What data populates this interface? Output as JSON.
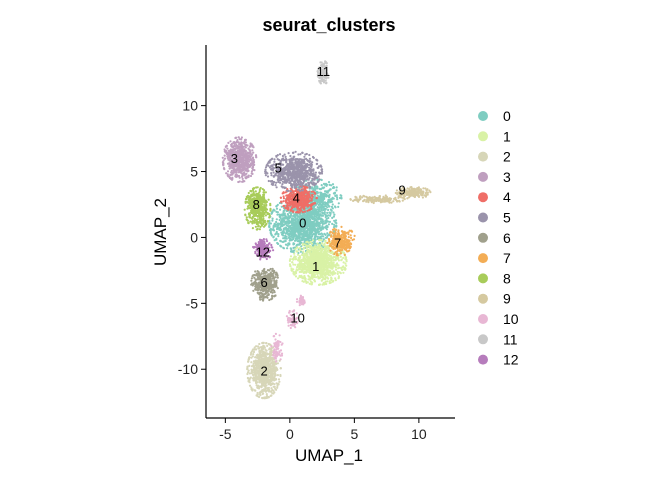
{
  "chart_data": {
    "type": "scatter",
    "title": "seurat_clusters",
    "xlabel": "UMAP_1",
    "ylabel": "UMAP_2",
    "xlim": [
      -6.5,
      12.8
    ],
    "ylim": [
      -13.7,
      14.6
    ],
    "x_ticks": [
      -5,
      0,
      5,
      10
    ],
    "y_ticks": [
      -10,
      -5,
      0,
      5,
      10
    ],
    "grid": false,
    "legend_position": "right",
    "series": [
      {
        "name": "0",
        "color": "#7fcdc1",
        "label_pos": [
          1.0,
          1.0
        ],
        "blobs": [
          [
            1.0,
            1.0,
            2.6,
            2.2,
            1300
          ],
          [
            2.0,
            3.0,
            2.0,
            1.4,
            400
          ]
        ]
      },
      {
        "name": "1",
        "color": "#d9f2a6",
        "label_pos": [
          2.0,
          -2.3
        ],
        "blobs": [
          [
            2.2,
            -1.9,
            2.2,
            1.7,
            1100
          ]
        ]
      },
      {
        "name": "2",
        "color": "#d7d6b8",
        "label_pos": [
          -2.0,
          -10.2
        ],
        "blobs": [
          [
            -2.0,
            -10.1,
            1.3,
            2.1,
            800
          ]
        ]
      },
      {
        "name": "3",
        "color": "#bf9fbf",
        "label_pos": [
          -4.3,
          5.9
        ],
        "blobs": [
          [
            -3.9,
            5.9,
            1.3,
            1.7,
            650
          ]
        ]
      },
      {
        "name": "4",
        "color": "#ef6e67",
        "label_pos": [
          0.5,
          2.9
        ],
        "blobs": [
          [
            0.7,
            2.9,
            1.4,
            1.0,
            450
          ]
        ]
      },
      {
        "name": "5",
        "color": "#9a93ab",
        "label_pos": [
          -0.9,
          5.2
        ],
        "blobs": [
          [
            0.3,
            5.0,
            2.2,
            1.5,
            750
          ]
        ]
      },
      {
        "name": "6",
        "color": "#a0a08c",
        "label_pos": [
          -2.0,
          -3.5
        ],
        "blobs": [
          [
            -1.9,
            -3.5,
            1.1,
            1.3,
            420
          ]
        ]
      },
      {
        "name": "7",
        "color": "#f3ad55",
        "label_pos": [
          3.7,
          -0.5
        ],
        "blobs": [
          [
            4.0,
            -0.3,
            1.1,
            1.1,
            280
          ]
        ]
      },
      {
        "name": "8",
        "color": "#a8cc5a",
        "label_pos": [
          -2.6,
          2.4
        ],
        "blobs": [
          [
            -2.5,
            2.2,
            1.0,
            1.6,
            480
          ]
        ]
      },
      {
        "name": "9",
        "color": "#d5c9a0",
        "label_pos": [
          8.7,
          3.5
        ],
        "blobs": [
          [
            9.5,
            3.4,
            1.4,
            0.45,
            220
          ],
          [
            6.8,
            2.9,
            2.1,
            0.3,
            160
          ]
        ]
      },
      {
        "name": "10",
        "color": "#e8b7d4",
        "label_pos": [
          0.6,
          -6.2
        ],
        "blobs": [
          [
            0.2,
            -6.2,
            0.45,
            0.7,
            60
          ],
          [
            -1.0,
            -8.4,
            0.45,
            1.1,
            70
          ],
          [
            0.9,
            -4.8,
            0.35,
            0.5,
            40
          ]
        ]
      },
      {
        "name": "11",
        "color": "#c8c8c8",
        "label_pos": [
          2.6,
          12.5
        ],
        "blobs": [
          [
            2.6,
            12.5,
            0.45,
            0.9,
            130
          ]
        ]
      },
      {
        "name": "12",
        "color": "#b67cbc",
        "label_pos": [
          -2.1,
          -1.2
        ],
        "blobs": [
          [
            -2.1,
            -0.9,
            0.8,
            0.8,
            200
          ]
        ]
      }
    ]
  }
}
